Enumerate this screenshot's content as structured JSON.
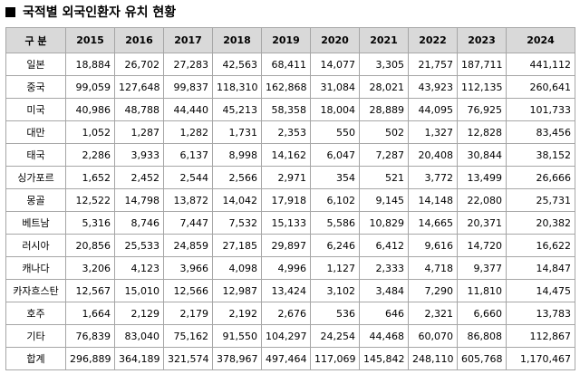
{
  "title": "국적별 외국인환자 유치 현황",
  "table": {
    "header": [
      "구 분",
      "2015",
      "2016",
      "2017",
      "2018",
      "2019",
      "2020",
      "2021",
      "2022",
      "2023",
      "2024"
    ],
    "rows": [
      [
        "일본",
        "18,884",
        "26,702",
        "27,283",
        "42,563",
        "68,411",
        "14,077",
        "3,305",
        "21,757",
        "187,711",
        "441,112"
      ],
      [
        "중국",
        "99,059",
        "127,648",
        "99,837",
        "118,310",
        "162,868",
        "31,084",
        "28,021",
        "43,923",
        "112,135",
        "260,641"
      ],
      [
        "미국",
        "40,986",
        "48,788",
        "44,440",
        "45,213",
        "58,358",
        "18,004",
        "28,889",
        "44,095",
        "76,925",
        "101,733"
      ],
      [
        "대만",
        "1,052",
        "1,287",
        "1,282",
        "1,731",
        "2,353",
        "550",
        "502",
        "1,327",
        "12,828",
        "83,456"
      ],
      [
        "태국",
        "2,286",
        "3,933",
        "6,137",
        "8,998",
        "14,162",
        "6,047",
        "7,287",
        "20,408",
        "30,844",
        "38,152"
      ],
      [
        "싱가포르",
        "1,652",
        "2,452",
        "2,544",
        "2,566",
        "2,971",
        "354",
        "521",
        "3,772",
        "13,499",
        "26,666"
      ],
      [
        "몽골",
        "12,522",
        "14,798",
        "13,872",
        "14,042",
        "17,918",
        "6,102",
        "9,145",
        "14,148",
        "22,080",
        "25,731"
      ],
      [
        "베트남",
        "5,316",
        "8,746",
        "7,447",
        "7,532",
        "15,133",
        "5,586",
        "10,829",
        "14,665",
        "20,371",
        "20,382"
      ],
      [
        "러시아",
        "20,856",
        "25,533",
        "24,859",
        "27,185",
        "29,897",
        "6,246",
        "6,412",
        "9,616",
        "14,720",
        "16,622"
      ],
      [
        "캐나다",
        "3,206",
        "4,123",
        "3,966",
        "4,098",
        "4,996",
        "1,127",
        "2,333",
        "4,718",
        "9,377",
        "14,847"
      ],
      [
        "카자흐스탄",
        "12,567",
        "15,010",
        "12,566",
        "12,987",
        "13,424",
        "3,102",
        "3,484",
        "7,290",
        "11,810",
        "14,475"
      ],
      [
        "호주",
        "1,664",
        "2,129",
        "2,179",
        "2,192",
        "2,676",
        "536",
        "646",
        "2,321",
        "6,660",
        "13,783"
      ],
      [
        "기타",
        "76,839",
        "83,040",
        "75,162",
        "91,550",
        "104,297",
        "24,254",
        "44,468",
        "60,070",
        "86,808",
        "112,867"
      ],
      [
        "합계",
        "296,889",
        "364,189",
        "321,574",
        "378,967",
        "497,464",
        "117,069",
        "145,842",
        "248,110",
        "605,768",
        "1,170,467"
      ]
    ]
  }
}
